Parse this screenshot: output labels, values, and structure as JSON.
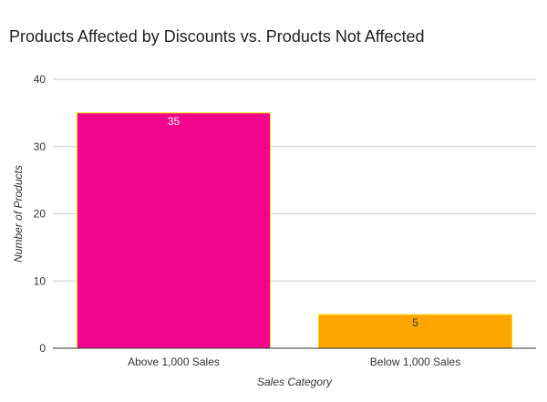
{
  "chart_data": {
    "type": "bar",
    "title": "Products Affected by Discounts vs. Products Not Affected",
    "xlabel": "Sales Category",
    "ylabel": "Number of Products",
    "categories": [
      "Above 1,000 Sales",
      "Below 1,000 Sales"
    ],
    "values": [
      35,
      5
    ],
    "data_labels": [
      "35",
      "5"
    ],
    "bar_colors": [
      "#f0068c",
      "#ffa500"
    ],
    "bar_outline_color": "#f5d90a",
    "ylim": [
      0,
      40
    ],
    "yticks": [
      0,
      10,
      20,
      30,
      40
    ],
    "ytick_labels": [
      "0",
      "10",
      "20",
      "30",
      "40"
    ],
    "grid": true,
    "legend": "none"
  }
}
